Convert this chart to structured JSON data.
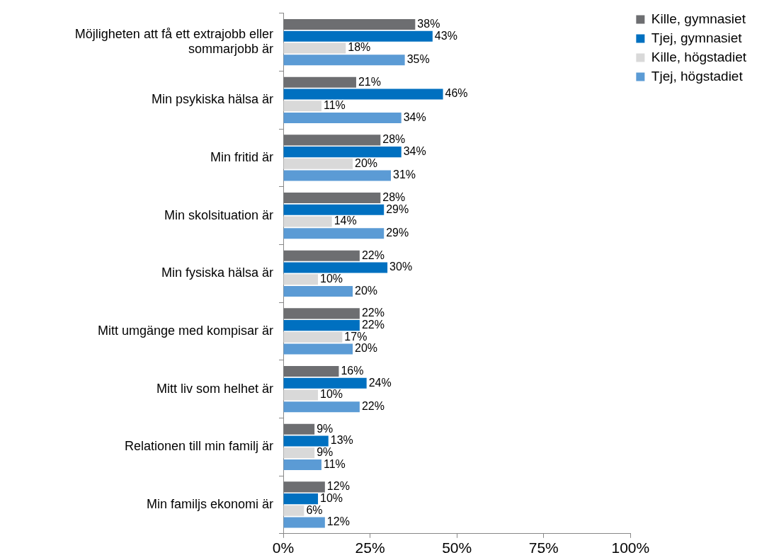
{
  "chart_data": {
    "type": "bar",
    "orientation": "horizontal",
    "categories": [
      "Möjligheten att få ett extrajobb eller sommarjobb är",
      "Min psykiska hälsa är",
      "Min fritid är",
      "Min skolsituation är",
      "Min fysiska hälsa är",
      "Mitt umgänge med kompisar är",
      "Mitt liv som helhet är",
      "Relationen till min familj är",
      "Min familjs ekonomi är"
    ],
    "series": [
      {
        "name": "Kille, gymnasiet",
        "color": "#6d6e71",
        "values": [
          38,
          21,
          28,
          28,
          22,
          22,
          16,
          9,
          12
        ],
        "value_labels": [
          "38%",
          "21%",
          "28%",
          "28%",
          "22%",
          "22%",
          "16%",
          "9%",
          "12%"
        ]
      },
      {
        "name": "Tjej, gymnasiet",
        "color": "#0070c0",
        "values": [
          43,
          46,
          34,
          29,
          30,
          22,
          24,
          13,
          10
        ],
        "value_labels": [
          "43%",
          "46%",
          "34%",
          "29%",
          "30%",
          "22%",
          "24%",
          "13%",
          "10%"
        ]
      },
      {
        "name": "Kille, högstadiet",
        "color": "#d9d9d9",
        "values": [
          18,
          11,
          20,
          14,
          10,
          17,
          10,
          9,
          6
        ],
        "value_labels": [
          "18%",
          "11%",
          "20%",
          "14%",
          "10%",
          "17%",
          "10%",
          "9%",
          "6%"
        ]
      },
      {
        "name": "Tjej, högstadiet",
        "color": "#5b9bd5",
        "values": [
          35,
          34,
          31,
          29,
          20,
          20,
          22,
          11,
          12
        ],
        "value_labels": [
          "35%",
          "34%",
          "31%",
          "29%",
          "20%",
          "20%",
          "22%",
          "11%",
          "12%"
        ]
      }
    ],
    "xlim": [
      0,
      100
    ],
    "xticks": [
      {
        "value": 0,
        "label": "0%"
      },
      {
        "value": 25,
        "label": "25%"
      },
      {
        "value": 50,
        "label": "50%"
      },
      {
        "value": 75,
        "label": "75%"
      },
      {
        "value": 100,
        "label": "100%"
      }
    ],
    "grid": false,
    "legend": "top right"
  }
}
